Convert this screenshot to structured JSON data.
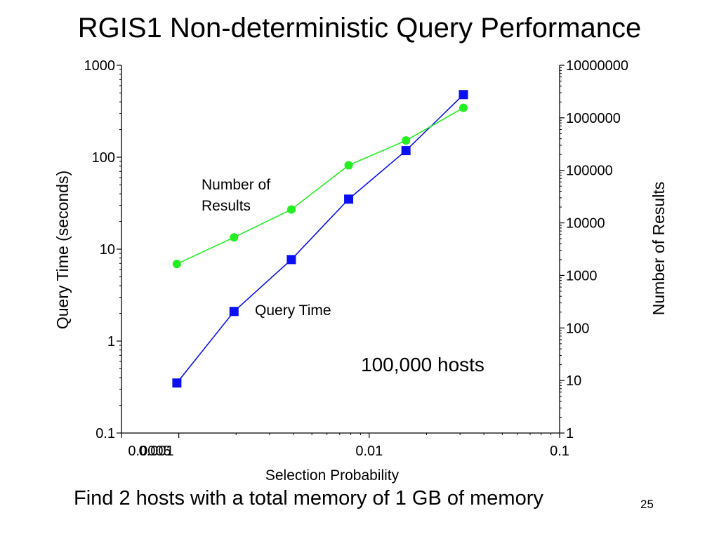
{
  "slide": {
    "title": "RGIS1 Non-deterministic Query Performance",
    "caption": "Find 2 hosts with a total memory of 1 GB of memory",
    "page_number": "25"
  },
  "chart_data": {
    "type": "line",
    "xlabel": "Selection Probability",
    "ylabel": "Query Time (seconds)",
    "y2label": "Number of Results",
    "xscale": "log",
    "yscale": "log",
    "y2scale": "log",
    "xlim": [
      0.0005,
      0.1
    ],
    "ylim": [
      0.1,
      1000
    ],
    "y2lim": [
      1,
      10000000
    ],
    "xticks": [
      0.0005,
      0.001,
      0.01,
      0.1
    ],
    "xtick_labels": [
      "0.0005",
      "0.001",
      "0.01",
      "0.1"
    ],
    "yticks": [
      0.1,
      1,
      10,
      100,
      1000
    ],
    "ytick_labels": [
      "0.1",
      "1",
      "10",
      "100",
      "1000"
    ],
    "y2ticks": [
      1,
      10,
      100,
      1000,
      10000,
      100000,
      1000000,
      10000000
    ],
    "y2tick_labels": [
      "1",
      "10",
      "100",
      "1000",
      "10000",
      "100000",
      "1000000",
      "10000000"
    ],
    "x": [
      0.000977,
      0.00195,
      0.0039,
      0.0078,
      0.0156,
      0.03125
    ],
    "series": [
      {
        "name": "Query Time",
        "axis": "left",
        "color": "#0a10f0",
        "marker": "square",
        "values": [
          0.35,
          2.1,
          7.7,
          35,
          118,
          480
        ]
      },
      {
        "name": "Number of Results",
        "axis": "right",
        "color": "#22ee22",
        "marker": "circle",
        "values": [
          1650,
          5300,
          18000,
          125000,
          370000,
          1550000
        ]
      }
    ],
    "annotations": [
      {
        "text": "Number of",
        "near": "results-series-label-line1"
      },
      {
        "text": "Results",
        "near": "results-series-label-line2"
      },
      {
        "text": "Query Time",
        "near": "query-time-series-label"
      },
      {
        "text": "100,000 hosts",
        "near": "hosts-note"
      }
    ],
    "grid": false,
    "legend": "none"
  }
}
